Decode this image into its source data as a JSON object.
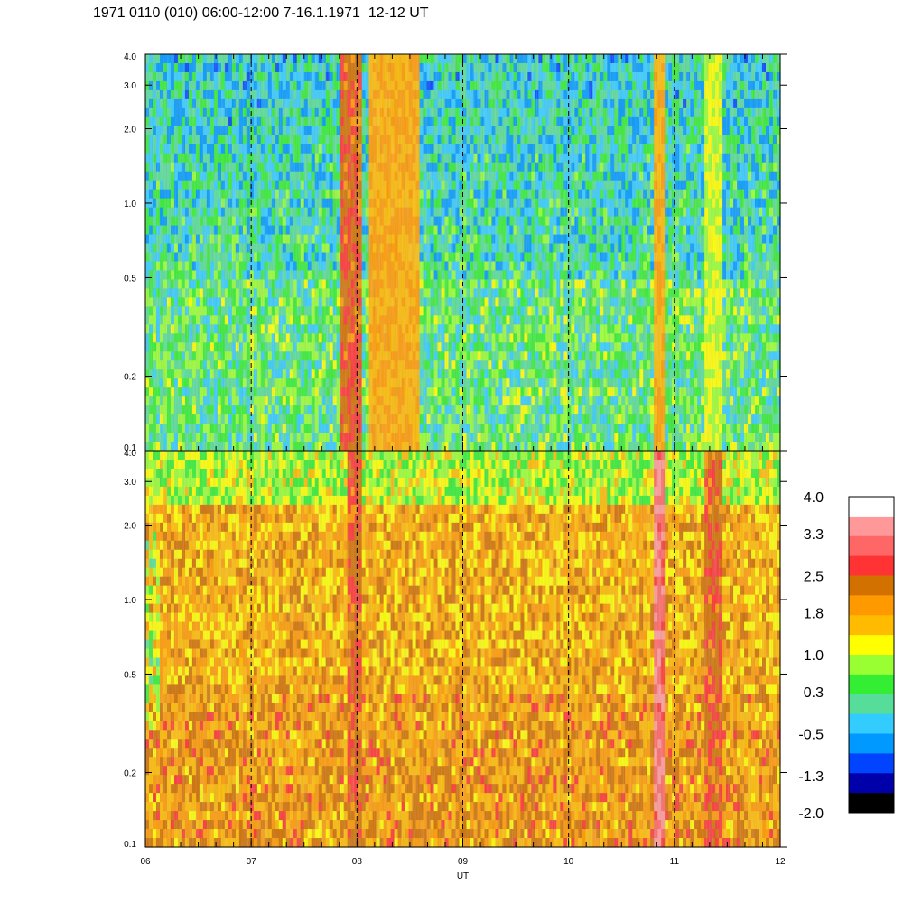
{
  "title": "1971 0110 (010) 06:00-12:00 7-16.1.1971  12-12 UT",
  "colorbar": {
    "tick_labels": [
      "4.0",
      "3.3",
      "2.5",
      "1.8",
      "1.0",
      "0.3",
      "-0.5",
      "-1.3",
      "-2.0"
    ],
    "colors": [
      "#ffffff",
      "#ff9999",
      "#ff6666",
      "#ff3333",
      "#d27000",
      "#ff9900",
      "#ffbb00",
      "#ffff00",
      "#99ff33",
      "#33ee33",
      "#55dd99",
      "#33ccff",
      "#0099ff",
      "#0044ff",
      "#0000aa",
      "#000000"
    ]
  },
  "chart_data": [
    {
      "type": "heatmap",
      "panel": "top",
      "xlabel": "",
      "ylabel": "",
      "y_scale": "log",
      "ylim": [
        0.1,
        4.0
      ],
      "xlim": [
        6,
        12
      ],
      "y_tick_labels": [
        "4.0",
        "3.0",
        "2.0",
        "1.0",
        "0.5",
        "0.2",
        "0.1"
      ],
      "y_tick_values": [
        4.0,
        3.0,
        2.0,
        1.0,
        0.5,
        0.2,
        0.1
      ],
      "dashed_hour_lines": [
        7,
        8,
        9,
        10,
        11
      ],
      "background_level": 0.3,
      "features": [
        {
          "x_start": 7.85,
          "x_end": 8.05,
          "level": 2.5
        },
        {
          "x_start": 8.1,
          "x_end": 8.6,
          "level": 1.8
        },
        {
          "x_start": 10.82,
          "x_end": 10.92,
          "level": 1.8
        },
        {
          "x_start": 11.3,
          "x_end": 11.45,
          "level": 1.0
        }
      ]
    },
    {
      "type": "heatmap",
      "panel": "bottom",
      "xlabel": "UT",
      "ylabel": "",
      "y_scale": "log",
      "ylim": [
        0.1,
        4.0
      ],
      "xlim": [
        6,
        12
      ],
      "x_tick_labels": [
        "06",
        "07",
        "08",
        "09",
        "10",
        "11",
        "12"
      ],
      "x_tick_values": [
        6,
        7,
        8,
        9,
        10,
        11,
        12
      ],
      "y_tick_labels": [
        "4.0",
        "3.0",
        "2.0",
        "1.0",
        "0.5",
        "0.2",
        "0.1"
      ],
      "y_tick_values": [
        4.0,
        3.0,
        2.0,
        1.0,
        0.5,
        0.2,
        0.1
      ],
      "dashed_hour_lines": [
        7,
        8,
        9,
        10,
        11
      ],
      "background_level": 1.8,
      "features": [
        {
          "x_start": 7.9,
          "x_end": 8.05,
          "level": 2.5
        },
        {
          "x_start": 10.82,
          "x_end": 10.92,
          "level": 3.3
        },
        {
          "x_start": 11.3,
          "x_end": 11.45,
          "level": 2.5
        }
      ]
    }
  ]
}
